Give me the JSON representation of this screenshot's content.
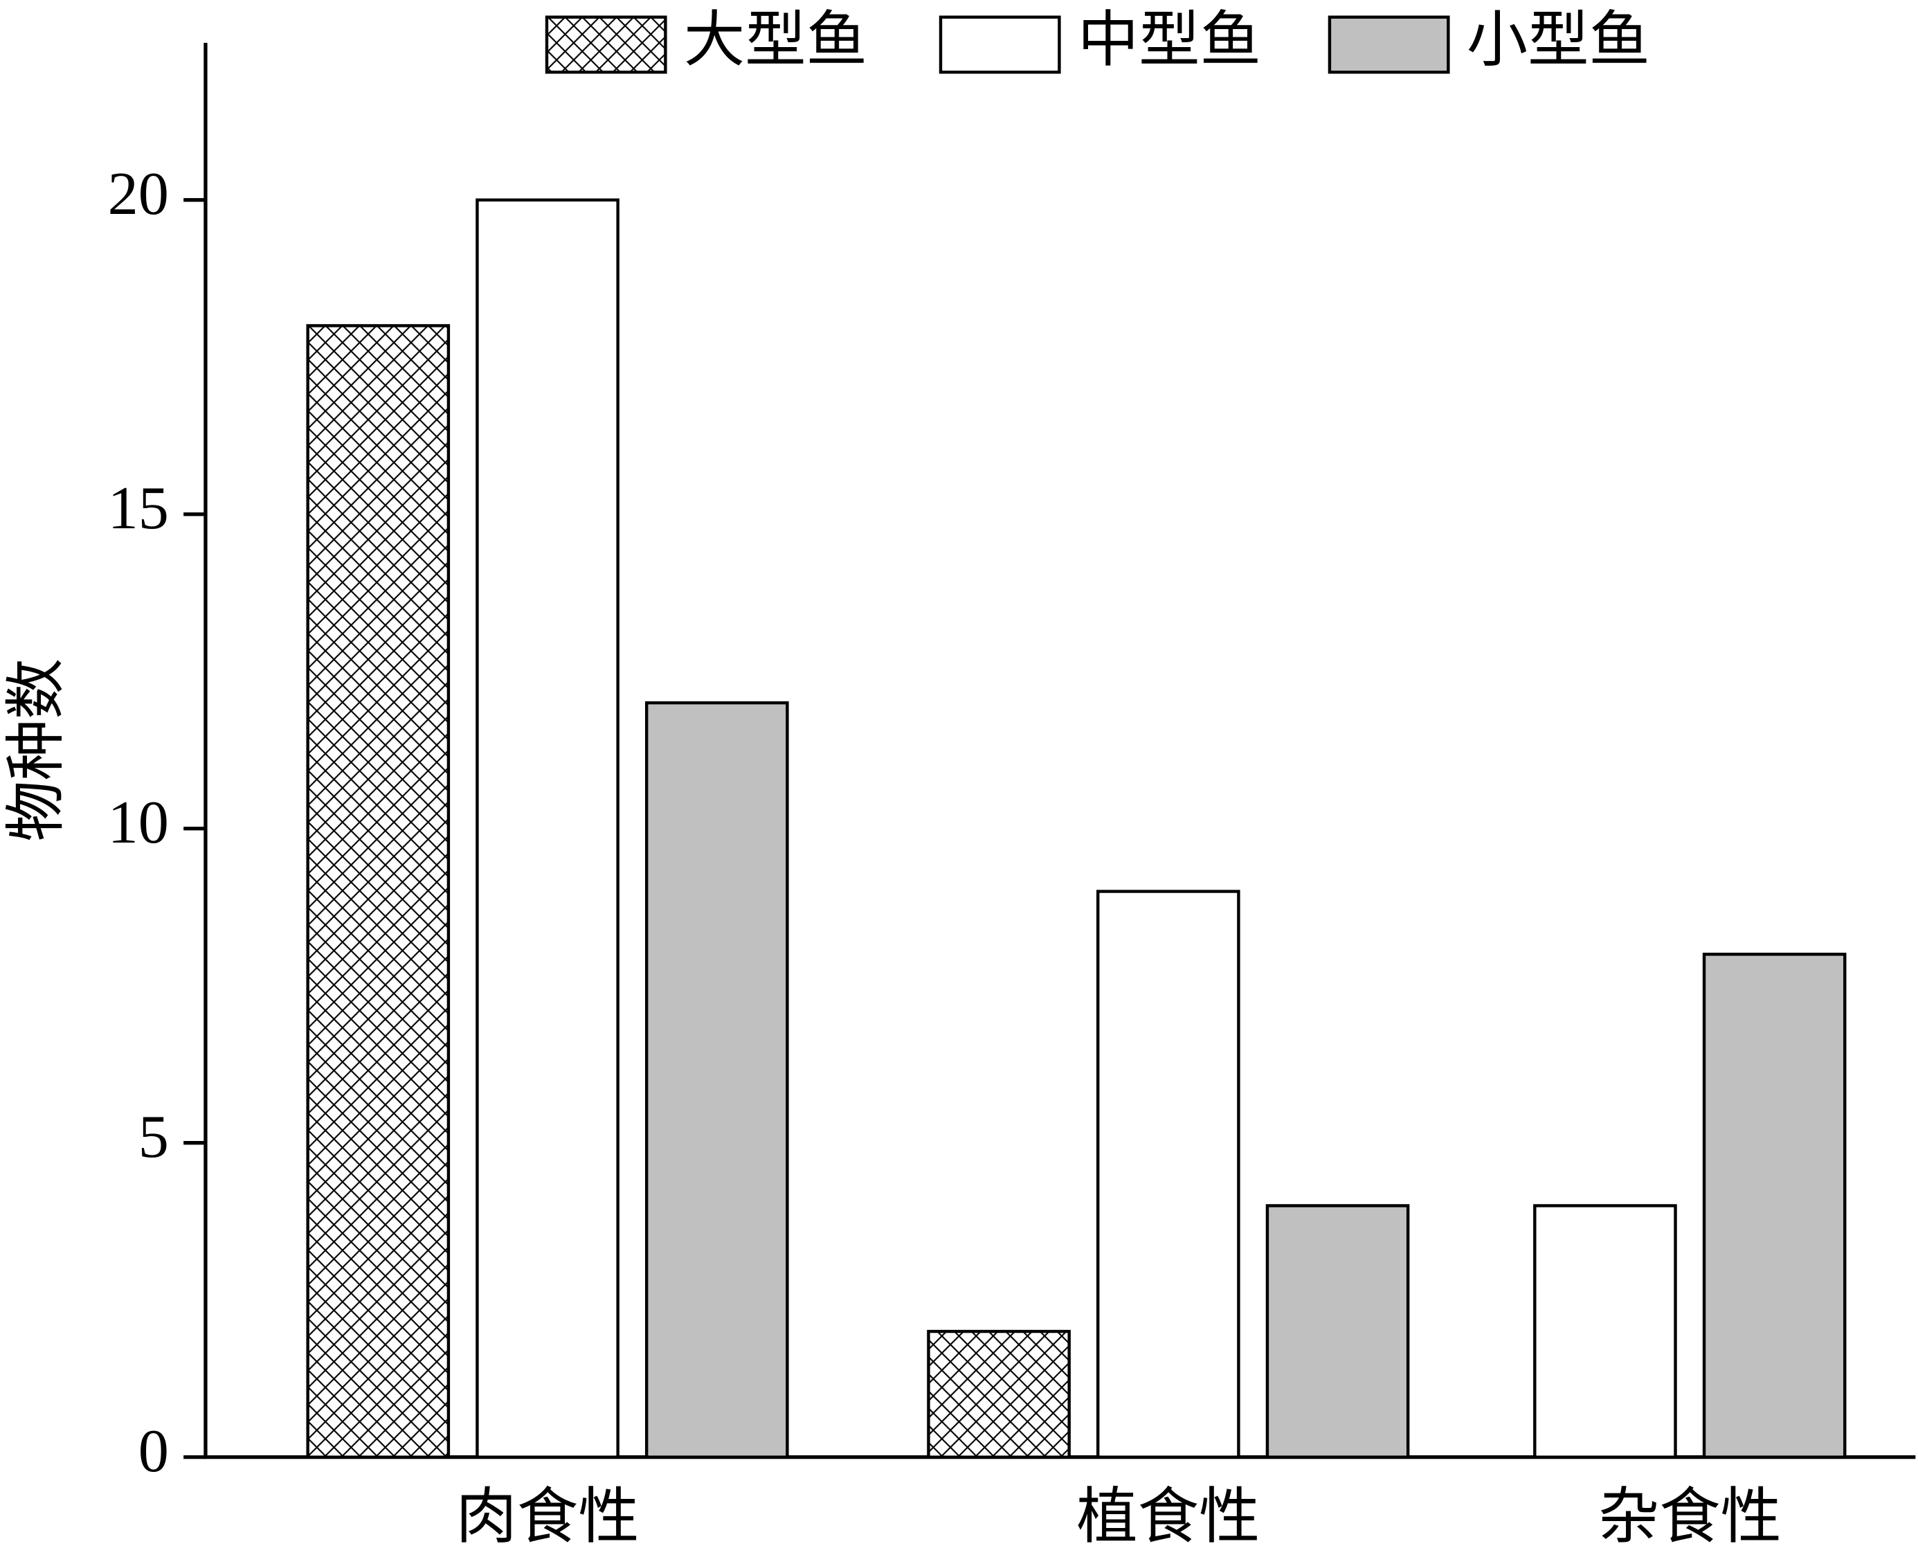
{
  "chart_data": {
    "type": "bar",
    "y_label": "物种数",
    "categories": [
      "肉食性",
      "植食性",
      "杂食性"
    ],
    "series": [
      {
        "name": "大型鱼",
        "color": "#ffffff",
        "hatch": "cross",
        "values": [
          18,
          2,
          null
        ]
      },
      {
        "name": "中型鱼",
        "color": "#ffffff",
        "values": [
          20,
          9,
          4
        ]
      },
      {
        "name": "小型鱼",
        "color": "#c0c0c0",
        "values": [
          12,
          4,
          8
        ]
      }
    ],
    "ylim": [
      0,
      22.5
    ],
    "yticks": [
      0,
      5,
      10,
      15,
      20
    ],
    "grid": false,
    "legend": "top"
  }
}
